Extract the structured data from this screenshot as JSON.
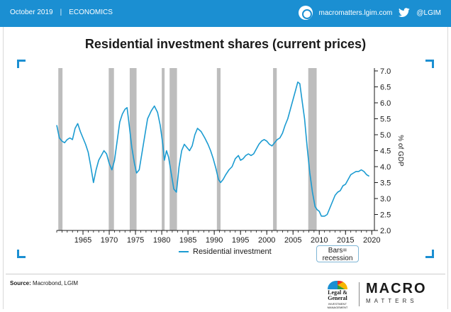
{
  "header": {
    "date": "October 2019",
    "separator": "|",
    "category": "ECONOMICS",
    "website": "macromatters.lgim.com",
    "twitter_handle": "@LGIM",
    "icons": [
      "macro-matters-badge-icon",
      "twitter-bird-icon"
    ],
    "bar_color": "#1b8fd2"
  },
  "legend": {
    "series_label": "Residential investment",
    "recession_label_line1": "Bars=",
    "recession_label_line2": "recession"
  },
  "footer": {
    "source_label": "Source:",
    "source_text": "Macrobond, LGIM",
    "lg_logo_line1": "Legal &",
    "lg_logo_line2": "General",
    "lg_logo_sub": "INVESTMENT MANAGEMENT",
    "macro": "MACRO",
    "matters": "MATTERS"
  },
  "chart_data": {
    "type": "line",
    "title": "Residential investment shares (current prices)",
    "ylabel": "% of GDP",
    "xlim": [
      1960,
      2020.5
    ],
    "ylim": [
      2.0,
      7.0
    ],
    "x_ticks": [
      1965,
      1970,
      1975,
      1980,
      1985,
      1990,
      1995,
      2000,
      2005,
      2010,
      2015,
      2020
    ],
    "y_ticks": [
      2.0,
      2.5,
      3.0,
      3.5,
      4.0,
      4.5,
      5.0,
      5.5,
      6.0,
      6.5,
      7.0
    ],
    "y_tick_labels": [
      "2.0",
      "2.5",
      "3.0",
      "3.5",
      "4.0",
      "4.5",
      "5.0",
      "5.5",
      "6.0",
      "6.5",
      "7.0"
    ],
    "line_color": "#1b9bd1",
    "recession_color": "#bdbdbd",
    "recessions": [
      [
        1960.3,
        1961.1
      ],
      [
        1969.9,
        1970.9
      ],
      [
        1973.9,
        1975.2
      ],
      [
        1980.0,
        1980.5
      ],
      [
        1981.5,
        1982.9
      ],
      [
        1990.5,
        1991.2
      ],
      [
        2001.2,
        2001.9
      ],
      [
        2007.9,
        2009.5
      ]
    ],
    "series": [
      {
        "name": "Residential investment",
        "points": [
          [
            1960.0,
            5.3
          ],
          [
            1960.5,
            4.9
          ],
          [
            1961.0,
            4.8
          ],
          [
            1961.5,
            4.75
          ],
          [
            1962.0,
            4.85
          ],
          [
            1962.5,
            4.9
          ],
          [
            1963.0,
            4.85
          ],
          [
            1963.5,
            5.2
          ],
          [
            1964.0,
            5.35
          ],
          [
            1964.5,
            5.1
          ],
          [
            1965.0,
            4.9
          ],
          [
            1965.5,
            4.7
          ],
          [
            1966.0,
            4.45
          ],
          [
            1966.5,
            4.0
          ],
          [
            1967.0,
            3.5
          ],
          [
            1967.5,
            3.9
          ],
          [
            1968.0,
            4.2
          ],
          [
            1968.5,
            4.35
          ],
          [
            1969.0,
            4.5
          ],
          [
            1969.5,
            4.4
          ],
          [
            1970.0,
            4.1
          ],
          [
            1970.5,
            3.9
          ],
          [
            1971.0,
            4.2
          ],
          [
            1971.5,
            4.8
          ],
          [
            1972.0,
            5.4
          ],
          [
            1972.5,
            5.65
          ],
          [
            1973.0,
            5.8
          ],
          [
            1973.4,
            5.85
          ],
          [
            1973.8,
            5.3
          ],
          [
            1974.3,
            4.6
          ],
          [
            1974.8,
            4.1
          ],
          [
            1975.2,
            3.8
          ],
          [
            1975.7,
            3.9
          ],
          [
            1976.2,
            4.4
          ],
          [
            1976.8,
            5.0
          ],
          [
            1977.3,
            5.5
          ],
          [
            1978.0,
            5.75
          ],
          [
            1978.6,
            5.9
          ],
          [
            1979.2,
            5.7
          ],
          [
            1979.7,
            5.3
          ],
          [
            1980.2,
            4.7
          ],
          [
            1980.5,
            4.2
          ],
          [
            1980.9,
            4.5
          ],
          [
            1981.3,
            4.3
          ],
          [
            1981.8,
            3.8
          ],
          [
            1982.3,
            3.3
          ],
          [
            1982.8,
            3.2
          ],
          [
            1983.3,
            4.0
          ],
          [
            1983.8,
            4.5
          ],
          [
            1984.3,
            4.7
          ],
          [
            1984.8,
            4.6
          ],
          [
            1985.3,
            4.5
          ],
          [
            1985.8,
            4.65
          ],
          [
            1986.3,
            5.0
          ],
          [
            1986.8,
            5.2
          ],
          [
            1987.5,
            5.1
          ],
          [
            1988.2,
            4.9
          ],
          [
            1988.8,
            4.7
          ],
          [
            1989.3,
            4.5
          ],
          [
            1989.8,
            4.25
          ],
          [
            1990.3,
            3.95
          ],
          [
            1990.8,
            3.6
          ],
          [
            1991.2,
            3.5
          ],
          [
            1991.7,
            3.6
          ],
          [
            1992.2,
            3.75
          ],
          [
            1992.8,
            3.9
          ],
          [
            1993.4,
            4.0
          ],
          [
            1994.0,
            4.25
          ],
          [
            1994.6,
            4.35
          ],
          [
            1995.0,
            4.2
          ],
          [
            1995.5,
            4.25
          ],
          [
            1996.0,
            4.35
          ],
          [
            1996.5,
            4.4
          ],
          [
            1997.0,
            4.35
          ],
          [
            1997.5,
            4.4
          ],
          [
            1998.0,
            4.55
          ],
          [
            1998.5,
            4.7
          ],
          [
            1999.0,
            4.8
          ],
          [
            1999.5,
            4.85
          ],
          [
            2000.0,
            4.8
          ],
          [
            2000.5,
            4.7
          ],
          [
            2001.0,
            4.65
          ],
          [
            2001.5,
            4.75
          ],
          [
            2002.0,
            4.85
          ],
          [
            2002.5,
            4.9
          ],
          [
            2003.0,
            5.05
          ],
          [
            2003.5,
            5.3
          ],
          [
            2004.0,
            5.5
          ],
          [
            2004.5,
            5.8
          ],
          [
            2005.0,
            6.1
          ],
          [
            2005.5,
            6.4
          ],
          [
            2005.9,
            6.65
          ],
          [
            2006.3,
            6.6
          ],
          [
            2006.7,
            6.1
          ],
          [
            2007.2,
            5.5
          ],
          [
            2007.7,
            4.6
          ],
          [
            2008.2,
            3.8
          ],
          [
            2008.7,
            3.2
          ],
          [
            2009.2,
            2.75
          ],
          [
            2009.6,
            2.65
          ],
          [
            2010.0,
            2.6
          ],
          [
            2010.4,
            2.45
          ],
          [
            2011.0,
            2.45
          ],
          [
            2011.5,
            2.5
          ],
          [
            2012.0,
            2.7
          ],
          [
            2012.5,
            2.9
          ],
          [
            2013.0,
            3.1
          ],
          [
            2013.5,
            3.2
          ],
          [
            2014.0,
            3.25
          ],
          [
            2014.5,
            3.4
          ],
          [
            2015.0,
            3.45
          ],
          [
            2015.5,
            3.6
          ],
          [
            2016.0,
            3.75
          ],
          [
            2016.5,
            3.8
          ],
          [
            2017.0,
            3.85
          ],
          [
            2017.5,
            3.85
          ],
          [
            2018.0,
            3.9
          ],
          [
            2018.5,
            3.85
          ],
          [
            2019.0,
            3.75
          ],
          [
            2019.5,
            3.7
          ]
        ]
      }
    ]
  }
}
